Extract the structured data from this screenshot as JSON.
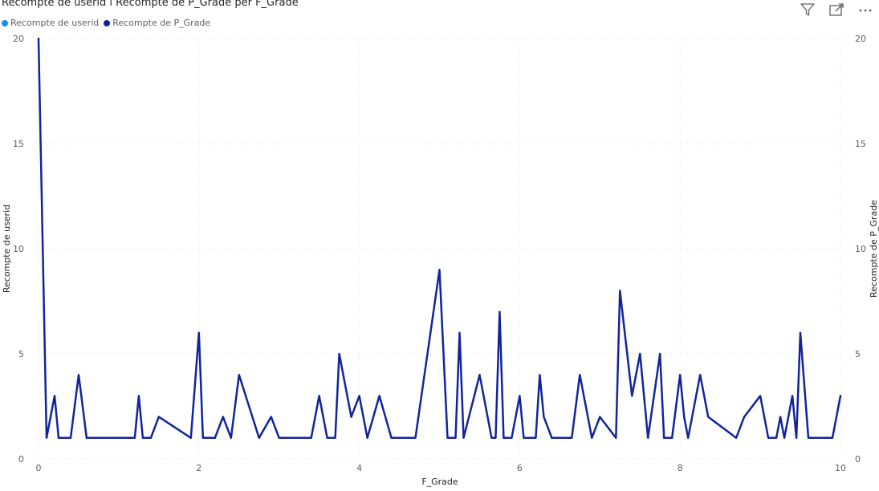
{
  "title": "Recompte de userid i Recompte de P_Grade per F_Grade",
  "legend": [
    {
      "label": "Recompte de userid",
      "color": "#118DFF"
    },
    {
      "label": "Recompte de P_Grade",
      "color": "#12239E"
    }
  ],
  "header_icons": [
    "filter-icon",
    "focus-mode-icon",
    "more-options-icon"
  ],
  "chart_data": {
    "type": "line",
    "xlabel": "F_Grade",
    "ylabel_left": "Recompte de userid",
    "ylabel_right": "Recompte de P_Grade",
    "xlim": [
      0,
      10
    ],
    "ylim": [
      0,
      20
    ],
    "x_ticks": [
      "0",
      "2",
      "4",
      "6",
      "8",
      "10"
    ],
    "y_ticks": [
      "0",
      "5",
      "10",
      "15",
      "20"
    ],
    "grid": true,
    "legend_position": "top-left",
    "series": [
      {
        "name": "Recompte de P_Grade",
        "color": "#12239E",
        "x": [
          0,
          0.1,
          0.2,
          0.25,
          0.4,
          0.5,
          0.6,
          1.0,
          1.2,
          1.25,
          1.3,
          1.4,
          1.5,
          1.9,
          2.0,
          2.05,
          2.2,
          2.3,
          2.4,
          2.5,
          2.75,
          2.9,
          3.0,
          3.4,
          3.5,
          3.6,
          3.7,
          3.75,
          3.9,
          4.0,
          4.1,
          4.25,
          4.4,
          4.7,
          5.0,
          5.1,
          5.2,
          5.25,
          5.3,
          5.5,
          5.65,
          5.7,
          5.75,
          5.8,
          5.9,
          6.0,
          6.05,
          6.2,
          6.25,
          6.3,
          6.4,
          6.65,
          6.75,
          6.9,
          7.0,
          7.2,
          7.25,
          7.4,
          7.5,
          7.6,
          7.75,
          7.8,
          7.9,
          8.0,
          8.05,
          8.1,
          8.25,
          8.35,
          8.7,
          8.8,
          9.0,
          9.1,
          9.2,
          9.25,
          9.3,
          9.4,
          9.45,
          9.5,
          9.6,
          9.9,
          10.0
        ],
        "values": [
          20,
          1,
          3,
          1,
          1,
          4,
          1,
          1,
          1,
          3,
          1,
          1,
          2,
          1,
          6,
          1,
          1,
          2,
          1,
          4,
          1,
          2,
          1,
          1,
          3,
          1,
          1,
          5,
          2,
          3,
          1,
          3,
          1,
          1,
          9,
          1,
          1,
          6,
          1,
          4,
          1,
          1,
          7,
          1,
          1,
          3,
          1,
          1,
          4,
          2,
          1,
          1,
          4,
          1,
          2,
          1,
          8,
          3,
          5,
          1,
          5,
          1,
          1,
          4,
          2,
          1,
          4,
          2,
          1,
          2,
          3,
          1,
          1,
          2,
          1,
          3,
          1,
          6,
          1,
          1,
          3
        ]
      }
    ]
  }
}
